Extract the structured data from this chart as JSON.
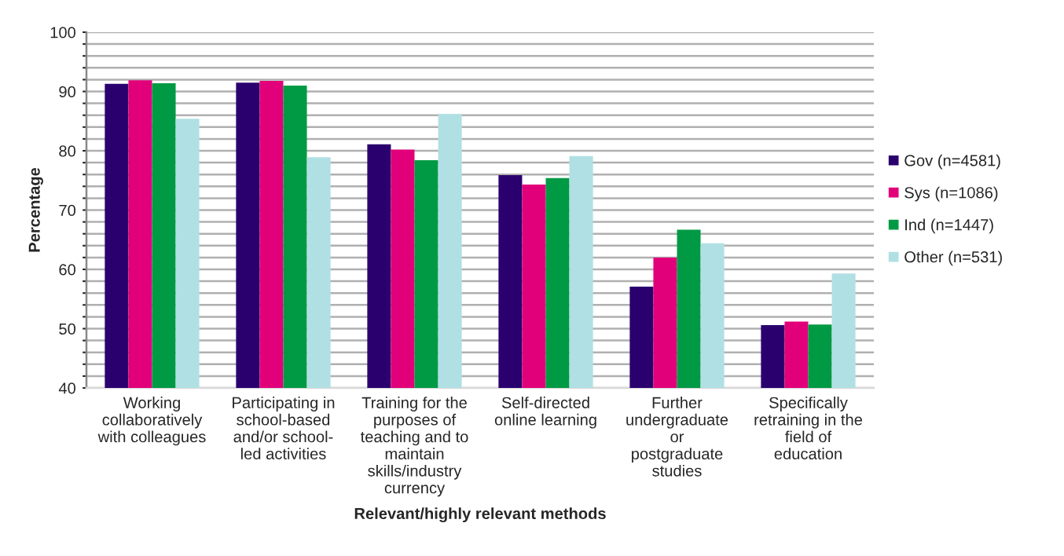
{
  "chart_data": {
    "type": "bar",
    "xlabel": "Relevant/highly relevant methods",
    "ylabel": "Percentage",
    "categories": [
      "Working\ncollaboratively\nwith colleagues",
      "Participating in\nschool-based\nand/or school-\nled activities",
      "Training for the\npurposes of\nteaching and to\nmaintain\nskills/industry\ncurrency",
      "Self-directed\nonline learning",
      "Further\nundergraduate\nor\npostgraduate\nstudies",
      "Specifically\nretraining in the\nfield of\neducation"
    ],
    "series": [
      {
        "name": "Gov (n=4581)",
        "color": "#2a006e",
        "values": [
          91.3,
          91.5,
          81.1,
          75.9,
          57.1,
          50.6
        ]
      },
      {
        "name": "Sys (n=1086)",
        "color": "#e2007a",
        "values": [
          91.9,
          91.8,
          80.2,
          74.3,
          62.0,
          51.2
        ]
      },
      {
        "name": "Ind (n=1447)",
        "color": "#009a44",
        "values": [
          91.4,
          91.0,
          78.4,
          75.4,
          66.7,
          50.7
        ]
      },
      {
        "name": "Other (n=531)",
        "color": "#b0e0e3",
        "values": [
          85.4,
          78.9,
          86.2,
          79.1,
          64.4,
          59.3
        ]
      }
    ],
    "ylim": [
      40,
      100
    ],
    "yticks": [
      40,
      {
        "value": 42,
        "label": null
      },
      {
        "value": 44,
        "label": null
      },
      {
        "value": 46,
        "label": null
      },
      {
        "value": 48,
        "label": null
      },
      50,
      {
        "value": 52,
        "label": null
      },
      {
        "value": 54,
        "label": null
      },
      {
        "value": 56,
        "label": null
      },
      {
        "value": 58,
        "label": null
      },
      60,
      {
        "value": 62,
        "label": null
      },
      {
        "value": 64,
        "label": null
      },
      {
        "value": 66,
        "label": null
      },
      {
        "value": 68,
        "label": null
      },
      70,
      {
        "value": 72,
        "label": null
      },
      {
        "value": 74,
        "label": null
      },
      {
        "value": 76,
        "label": null
      },
      {
        "value": 78,
        "label": null
      },
      80,
      {
        "value": 82,
        "label": null
      },
      {
        "value": 84,
        "label": null
      },
      {
        "value": 86,
        "label": null
      },
      {
        "value": 88,
        "label": null
      },
      90,
      {
        "value": 92,
        "label": null
      },
      {
        "value": 94,
        "label": null
      },
      {
        "value": 96,
        "label": null
      },
      {
        "value": 98,
        "label": null
      },
      100
    ],
    "grid": "y",
    "legend": "right"
  }
}
